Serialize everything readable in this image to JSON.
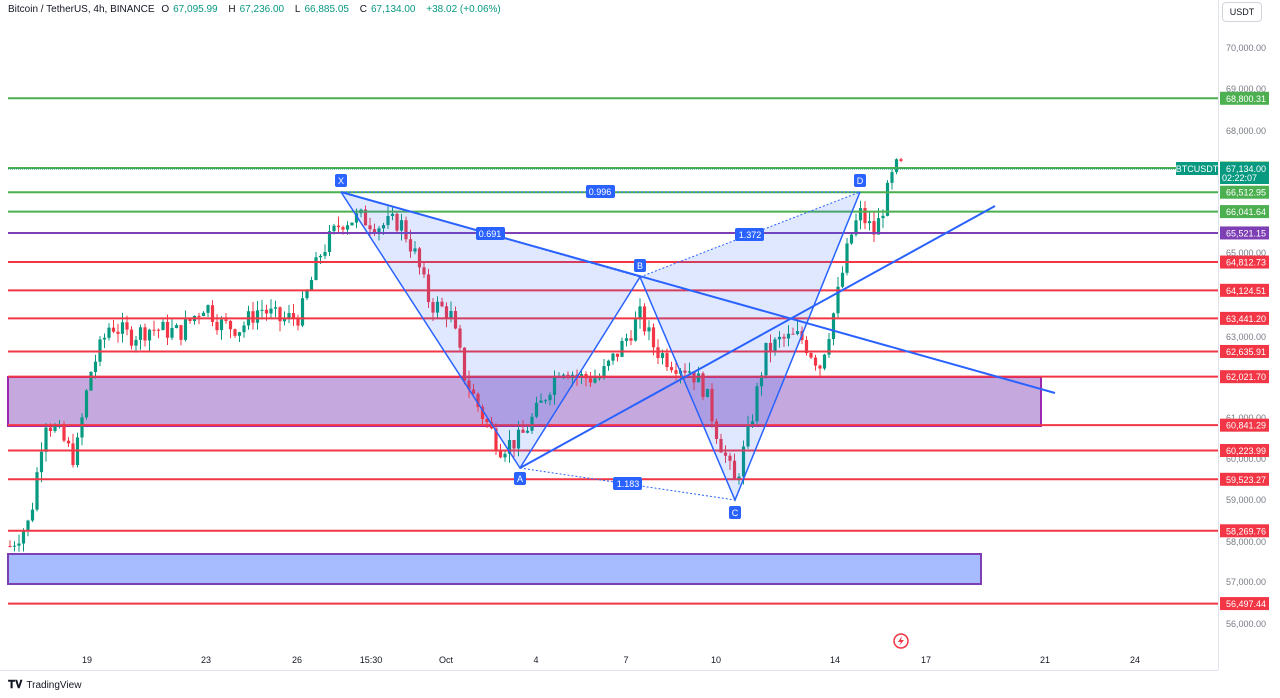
{
  "header": {
    "symbol": "Bitcoin / TetherUS, 4h, BINANCE",
    "open_label": "O",
    "open": "67,095.99",
    "high_label": "H",
    "high": "67,236.00",
    "low_label": "L",
    "low": "66,885.05",
    "close_label": "C",
    "close": "67,134.00",
    "change": "+38.02 (+0.06%)"
  },
  "currency_button": "USDT",
  "branding": "TradingView",
  "price_axis_ticks": [
    "70,000.00",
    "69,000.00",
    "68,000.00",
    "63,000.00",
    "61,000.00",
    "60,000.00",
    "59,000.00",
    "58,000.00",
    "57,000.00",
    "56,000.00",
    "65,000.00"
  ],
  "time_axis_ticks": [
    "19",
    "23",
    "26",
    "15:30",
    "Oct",
    "4",
    "7",
    "10",
    "14",
    "17",
    "21",
    "24"
  ],
  "symbol_tag": "BTCUSDT",
  "last_price": "67,134.00",
  "countdown": "02:22:07",
  "levels": [
    {
      "price": "68,800.31",
      "color": "#4caf50"
    },
    {
      "price": "67,102.09",
      "color": "#4caf50"
    },
    {
      "price": "66,512.95",
      "color": "#4caf50"
    },
    {
      "price": "66,041.64",
      "color": "#4caf50"
    },
    {
      "price": "65,521.15",
      "color": "#7e3fb5"
    },
    {
      "price": "64,812.73",
      "color": "#f23645"
    },
    {
      "price": "64,124.51",
      "color": "#f23645"
    },
    {
      "price": "63,441.20",
      "color": "#f23645"
    },
    {
      "price": "62,635.91",
      "color": "#f23645"
    },
    {
      "price": "62,021.70",
      "color": "#f23645"
    },
    {
      "price": "60,841.29",
      "color": "#f23645"
    },
    {
      "price": "60,223.99",
      "color": "#f23645"
    },
    {
      "price": "59,523.27",
      "color": "#f23645"
    },
    {
      "price": "58,269.76",
      "color": "#f23645"
    },
    {
      "price": "56,497.44",
      "color": "#f23645"
    }
  ],
  "pattern": {
    "points": [
      "X",
      "A",
      "B",
      "C",
      "D"
    ],
    "ratios": [
      "0.996",
      "0.691",
      "1.372",
      "1.183"
    ]
  },
  "colors": {
    "up": "#089981",
    "down": "#f23645",
    "pattern": "#2962ff",
    "zone_purple": "#7e3fb5",
    "zone_blue": "#2962ff",
    "green_level": "#4caf50"
  }
}
